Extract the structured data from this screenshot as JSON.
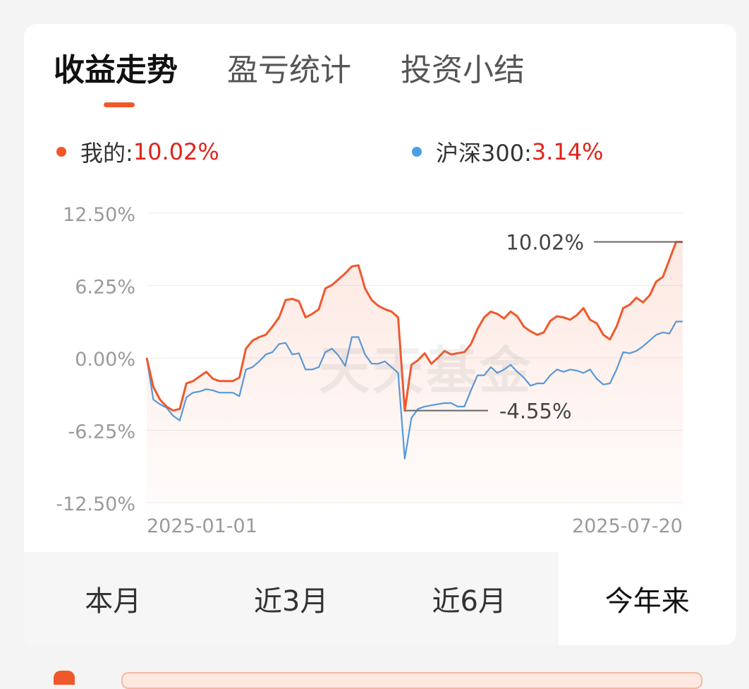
{
  "tabs": [
    {
      "label": "收益走势",
      "active": true
    },
    {
      "label": "盈亏统计",
      "active": false
    },
    {
      "label": "投资小结",
      "active": false
    }
  ],
  "legend": {
    "mine": {
      "label": "我的:",
      "value": "10.02%",
      "color": "#f0582c"
    },
    "index": {
      "label": "沪深300:",
      "value": "3.14%",
      "color": "#4a9ee8"
    }
  },
  "watermark": "天天基金",
  "periods": [
    {
      "label": "本月",
      "selected": false
    },
    {
      "label": "近3月",
      "selected": false
    },
    {
      "label": "近6月",
      "selected": false
    },
    {
      "label": "今年来",
      "selected": true
    }
  ],
  "chart_data": {
    "type": "line",
    "y_tick_labels": [
      "12.50%",
      "6.25%",
      "0.00%",
      "-6.25%",
      "-12.50%"
    ],
    "y_ticks": [
      12.5,
      6.25,
      0,
      -6.25,
      -12.5
    ],
    "ylim": [
      -12.5,
      12.5
    ],
    "x_tick_labels": [
      "2025-01-01",
      "2025-07-20"
    ],
    "grid": true,
    "annotations": [
      {
        "text": "10.02%",
        "value": 10.02,
        "kind": "max"
      },
      {
        "text": "-4.55%",
        "value": -4.55,
        "kind": "min"
      }
    ],
    "series": [
      {
        "name": "我的",
        "color": "#f0582c",
        "fill": true,
        "values": [
          0,
          -2.5,
          -3.6,
          -4.2,
          -4.55,
          -4.4,
          -2.2,
          -2.0,
          -1.6,
          -1.2,
          -1.8,
          -2.0,
          -2.0,
          -2.0,
          -1.7,
          0.8,
          1.5,
          1.8,
          2.0,
          2.7,
          3.5,
          5.0,
          5.1,
          4.9,
          3.5,
          3.8,
          4.2,
          6.0,
          6.3,
          6.8,
          7.3,
          7.9,
          8.0,
          6.0,
          5.0,
          4.5,
          4.2,
          4.0,
          3.5,
          -4.55,
          -0.6,
          -0.2,
          0.4,
          -0.5,
          0.0,
          0.6,
          0.3,
          0.4,
          0.5,
          1.2,
          2.5,
          3.5,
          4.0,
          3.8,
          3.4,
          4.0,
          3.6,
          2.7,
          2.3,
          2.0,
          2.2,
          3.2,
          3.6,
          3.5,
          3.3,
          3.7,
          4.3,
          3.3,
          3.0,
          2.0,
          1.6,
          2.7,
          4.3,
          4.6,
          5.2,
          4.8,
          5.4,
          6.6,
          7.0,
          8.5,
          10.02,
          10.02
        ]
      },
      {
        "name": "沪深300",
        "color": "#4a9ee8",
        "fill": false,
        "values": [
          0,
          -3.6,
          -4.0,
          -4.3,
          -5.0,
          -5.4,
          -3.4,
          -3.0,
          -2.9,
          -2.7,
          -2.8,
          -3.0,
          -3.0,
          -3.0,
          -3.3,
          -1.0,
          -0.8,
          -0.3,
          0.3,
          0.5,
          1.2,
          1.3,
          0.3,
          0.4,
          -1.0,
          -1.0,
          -0.8,
          0.5,
          0.8,
          0.2,
          -0.7,
          1.8,
          1.8,
          0.3,
          -0.5,
          -0.5,
          -0.3,
          -0.8,
          -1.3,
          -8.7,
          -5.2,
          -4.4,
          -4.2,
          -4.1,
          -4.0,
          -3.9,
          -3.9,
          -4.2,
          -4.2,
          -2.8,
          -1.5,
          -1.5,
          -0.8,
          -1.3,
          -1.0,
          -0.6,
          -1.2,
          -1.7,
          -2.4,
          -2.2,
          -2.2,
          -1.5,
          -1.0,
          -1.2,
          -1.0,
          -1.1,
          -1.3,
          -1.0,
          -1.8,
          -2.3,
          -2.2,
          -1.0,
          0.5,
          0.4,
          0.6,
          1.0,
          1.5,
          2.0,
          2.2,
          2.1,
          3.14,
          3.14
        ]
      }
    ]
  }
}
